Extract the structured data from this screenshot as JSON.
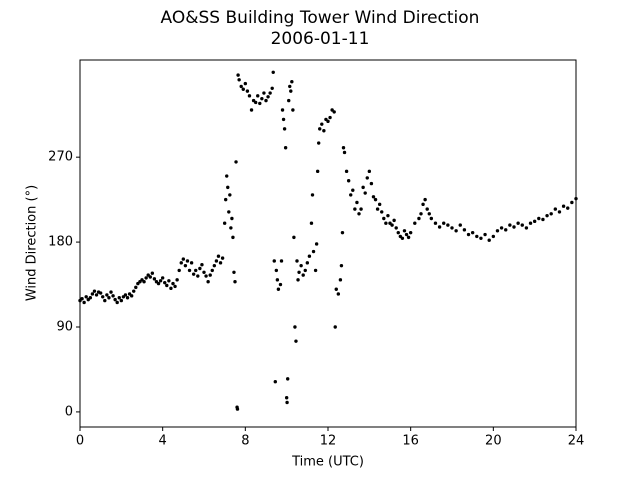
{
  "chart_data": {
    "type": "scatter",
    "title": "AO&SS Building Tower Wind Direction",
    "subtitle": "2006-01-11",
    "xlabel": "Time (UTC)",
    "ylabel": "Wind Direction (°)",
    "color": "#000000",
    "xlim": [
      0,
      24
    ],
    "xticks": [
      0,
      4,
      8,
      12,
      16,
      20,
      24
    ],
    "ylim": [
      -16,
      373
    ],
    "yticks": [
      0,
      90,
      180,
      270
    ],
    "grid": false,
    "x": [
      0.0,
      0.1,
      0.2,
      0.3,
      0.4,
      0.5,
      0.6,
      0.7,
      0.8,
      0.9,
      1.0,
      1.1,
      1.2,
      1.3,
      1.4,
      1.5,
      1.6,
      1.7,
      1.8,
      1.9,
      2.0,
      2.1,
      2.2,
      2.3,
      2.4,
      2.5,
      2.6,
      2.7,
      2.8,
      2.9,
      3.0,
      3.1,
      3.2,
      3.3,
      3.4,
      3.5,
      3.6,
      3.7,
      3.8,
      3.9,
      4.0,
      4.1,
      4.2,
      4.3,
      4.4,
      4.5,
      4.6,
      4.7,
      4.8,
      4.9,
      5.0,
      5.1,
      5.2,
      5.3,
      5.4,
      5.5,
      5.6,
      5.7,
      5.8,
      5.9,
      6.0,
      6.1,
      6.2,
      6.3,
      6.4,
      6.5,
      6.6,
      6.7,
      6.8,
      6.9,
      7.0,
      7.05,
      7.1,
      7.15,
      7.2,
      7.25,
      7.3,
      7.35,
      7.4,
      7.45,
      7.5,
      7.55,
      7.6,
      7.62,
      7.65,
      7.7,
      7.8,
      7.9,
      8.0,
      8.1,
      8.2,
      8.3,
      8.4,
      8.5,
      8.6,
      8.7,
      8.8,
      8.9,
      9.0,
      9.1,
      9.2,
      9.3,
      9.35,
      9.4,
      9.45,
      9.5,
      9.55,
      9.6,
      9.7,
      9.75,
      9.8,
      9.85,
      9.9,
      9.95,
      10.0,
      10.02,
      10.05,
      10.1,
      10.15,
      10.2,
      10.25,
      10.3,
      10.35,
      10.4,
      10.45,
      10.5,
      10.55,
      10.6,
      10.7,
      10.8,
      10.9,
      11.0,
      11.1,
      11.2,
      11.25,
      11.3,
      11.4,
      11.45,
      11.5,
      11.55,
      11.6,
      11.7,
      11.8,
      11.9,
      12.0,
      12.1,
      12.2,
      12.3,
      12.35,
      12.4,
      12.5,
      12.6,
      12.65,
      12.7,
      12.75,
      12.8,
      12.9,
      13.0,
      13.1,
      13.2,
      13.3,
      13.4,
      13.5,
      13.6,
      13.7,
      13.8,
      13.9,
      14.0,
      14.1,
      14.2,
      14.3,
      14.4,
      14.5,
      14.6,
      14.7,
      14.8,
      14.9,
      15.0,
      15.1,
      15.2,
      15.3,
      15.4,
      15.5,
      15.6,
      15.7,
      15.8,
      15.9,
      16.0,
      16.2,
      16.4,
      16.5,
      16.6,
      16.7,
      16.8,
      16.9,
      17.0,
      17.2,
      17.4,
      17.6,
      17.8,
      18.0,
      18.2,
      18.4,
      18.6,
      18.8,
      19.0,
      19.2,
      19.4,
      19.6,
      19.8,
      20.0,
      20.2,
      20.4,
      20.6,
      20.8,
      21.0,
      21.2,
      21.4,
      21.6,
      21.8,
      22.0,
      22.2,
      22.4,
      22.6,
      22.8,
      23.0,
      23.2,
      23.4,
      23.6,
      23.8,
      24.0
    ],
    "values": [
      118,
      120,
      116,
      122,
      119,
      121,
      125,
      128,
      124,
      127,
      126,
      122,
      118,
      124,
      121,
      127,
      123,
      119,
      116,
      121,
      118,
      122,
      124,
      121,
      125,
      123,
      128,
      132,
      136,
      138,
      140,
      138,
      142,
      145,
      143,
      147,
      141,
      138,
      136,
      139,
      142,
      137,
      134,
      139,
      131,
      136,
      133,
      140,
      150,
      158,
      162,
      155,
      160,
      150,
      158,
      146,
      150,
      144,
      152,
      156,
      148,
      144,
      138,
      145,
      150,
      155,
      160,
      165,
      158,
      163,
      200,
      225,
      250,
      238,
      212,
      230,
      195,
      205,
      185,
      148,
      138,
      265,
      5,
      3,
      357,
      352,
      345,
      342,
      348,
      340,
      335,
      320,
      330,
      328,
      335,
      327,
      332,
      338,
      330,
      334,
      338,
      343,
      360,
      160,
      32,
      150,
      140,
      130,
      135,
      160,
      320,
      310,
      300,
      280,
      15,
      10,
      35,
      330,
      345,
      340,
      350,
      320,
      185,
      90,
      75,
      160,
      140,
      148,
      155,
      145,
      150,
      158,
      165,
      200,
      230,
      170,
      150,
      178,
      255,
      285,
      300,
      305,
      298,
      310,
      308,
      312,
      320,
      318,
      90,
      130,
      125,
      140,
      155,
      190,
      280,
      275,
      255,
      245,
      230,
      235,
      215,
      222,
      210,
      215,
      238,
      232,
      248,
      255,
      242,
      228,
      225,
      215,
      220,
      212,
      205,
      200,
      208,
      200,
      198,
      203,
      195,
      190,
      186,
      184,
      192,
      188,
      185,
      190,
      200,
      205,
      210,
      220,
      225,
      215,
      210,
      205,
      200,
      196,
      200,
      198,
      195,
      192,
      198,
      193,
      188,
      190,
      186,
      184,
      188,
      182,
      186,
      192,
      195,
      193,
      198,
      196,
      200,
      198,
      195,
      200,
      202,
      205,
      204,
      208,
      210,
      215,
      212,
      218,
      216,
      222,
      226
    ]
  }
}
